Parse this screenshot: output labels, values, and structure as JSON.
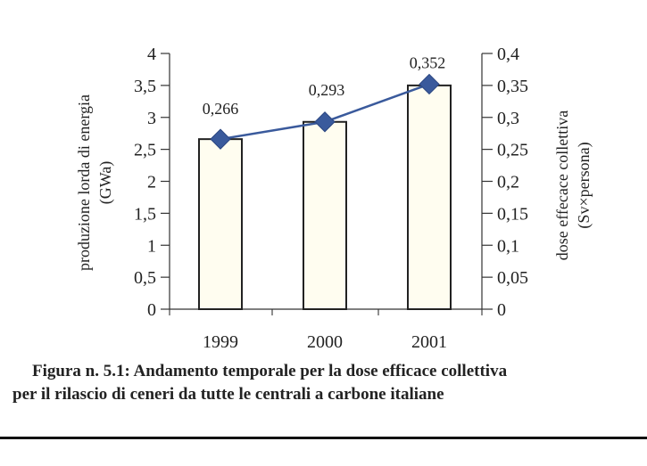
{
  "chart_data": {
    "type": "bar",
    "categories": [
      "1999",
      "2000",
      "2001"
    ],
    "series": [
      {
        "kind": "bar",
        "axis": "left",
        "values": [
          2.66,
          2.93,
          3.5
        ]
      },
      {
        "kind": "line",
        "axis": "right",
        "values": [
          0.266,
          0.293,
          0.352
        ],
        "data_labels": [
          "0,266",
          "0,293",
          "0,352"
        ],
        "color": "#3a5a9c"
      }
    ],
    "ylabel_left": [
      "produzione lorda di energia",
      "(GWa)"
    ],
    "ylabel_right": [
      "dose effecace collettiva",
      "(Sv×persona)"
    ],
    "ylim_left": [
      0,
      4
    ],
    "ylim_right": [
      0,
      0.4
    ],
    "yticks_left": [
      "0",
      "0,5",
      "1",
      "1,5",
      "2",
      "2,5",
      "3",
      "3,5",
      "4"
    ],
    "yticks_right": [
      "0",
      "0,05",
      "0,1",
      "0,15",
      "0,2",
      "0,25",
      "0,3",
      "0,35",
      "0,4"
    ],
    "bar_fill": "#fffdf0",
    "grid": false
  },
  "caption": {
    "line1": "Figura n. 5.1: Andamento temporale per la dose efficace collettiva",
    "line2": "per il rilascio di ceneri da tutte le centrali a carbone italiane"
  }
}
